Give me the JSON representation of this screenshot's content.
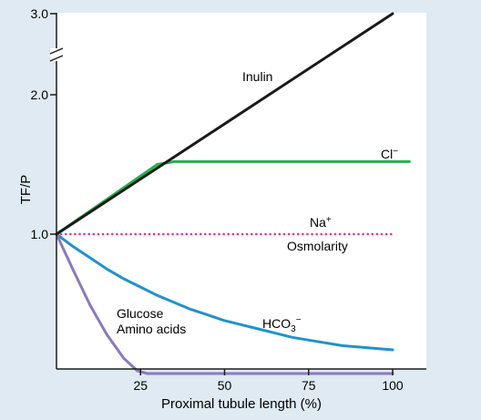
{
  "chart_data": {
    "type": "line",
    "xlabel": "Proximal tubule length (%)",
    "ylabel": "TF/P",
    "xlim": [
      0,
      120
    ],
    "xticks": [
      25,
      50,
      75,
      100
    ],
    "yticks": [
      1.0,
      2.0,
      3.0
    ],
    "ytick_labels": [
      "1.0",
      "2.0",
      "3.0"
    ],
    "axis_break": "y between 2.0 and 3.0",
    "series": [
      {
        "name": "Inulin",
        "color": "#1a1a1a",
        "style": "solid",
        "x": [
          0,
          100
        ],
        "y": [
          1.0,
          3.0
        ]
      },
      {
        "name": "Cl⁻",
        "color": "#22b24c",
        "style": "solid",
        "x": [
          0,
          30,
          35,
          105
        ],
        "y": [
          1.0,
          1.5,
          1.52,
          1.52
        ]
      },
      {
        "name": "Na⁺ / Osmolarity",
        "color": "#e0338f",
        "style": "dotted",
        "x": [
          0,
          100
        ],
        "y": [
          1.0,
          1.0
        ]
      },
      {
        "name": "HCO₃⁻",
        "color": "#1f93cc",
        "style": "solid",
        "x": [
          0,
          5,
          10,
          15,
          20,
          25,
          30,
          35,
          40,
          45,
          50,
          55,
          60,
          65,
          70,
          75,
          80,
          85,
          90,
          95,
          100
        ],
        "y": [
          1.0,
          0.91,
          0.83,
          0.75,
          0.68,
          0.62,
          0.56,
          0.51,
          0.46,
          0.42,
          0.38,
          0.35,
          0.32,
          0.29,
          0.26,
          0.24,
          0.22,
          0.2,
          0.19,
          0.18,
          0.17
        ]
      },
      {
        "name": "Glucose / Amino acids",
        "color": "#8a78c4",
        "style": "solid",
        "x": [
          0,
          5,
          10,
          15,
          20,
          24,
          27,
          100
        ],
        "y": [
          1.0,
          0.74,
          0.49,
          0.28,
          0.11,
          0.02,
          0.0,
          0.0
        ]
      }
    ],
    "annotations": {
      "inulin": "Inulin",
      "cl": "Cl",
      "cl_sup": "−",
      "na": "Na",
      "na_sup": "+",
      "osmolarity": "Osmolarity",
      "hco3_main": "HCO",
      "hco3_sub": "3",
      "hco3_sup": "−",
      "glucose": "Glucose",
      "amino_acids": "Amino acids"
    }
  }
}
